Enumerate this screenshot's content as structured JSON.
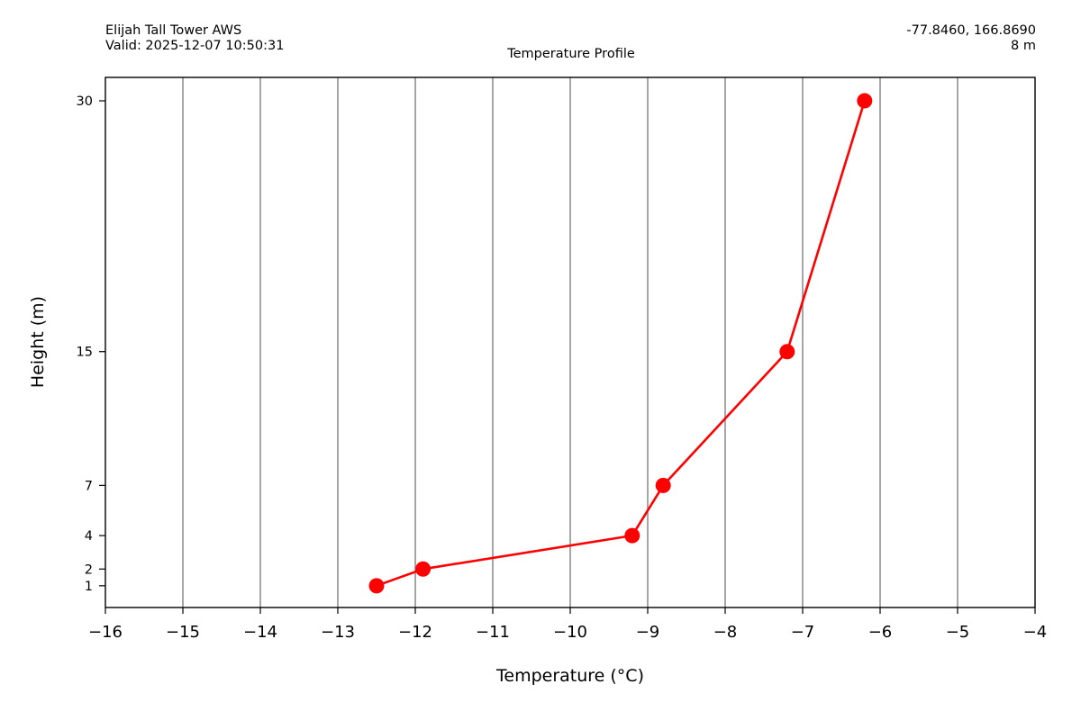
{
  "header": {
    "station": "Elijah Tall Tower AWS",
    "valid": "Valid: 2025-12-07 10:50:31",
    "coords": "-77.8460, 166.8690",
    "height": "8 m",
    "title": "Temperature Profile"
  },
  "chart_data": {
    "type": "line",
    "title": "Temperature Profile",
    "xlabel": "Temperature (°C)",
    "ylabel": "Height (m)",
    "xlim": [
      -16,
      -4
    ],
    "ylim": [
      -0.3,
      31.4
    ],
    "x_ticks": [
      -16,
      -15,
      -14,
      -13,
      -12,
      -11,
      -10,
      -9,
      -8,
      -7,
      -6,
      -5,
      -4
    ],
    "x_tick_labels": [
      "−16",
      "−15",
      "−14",
      "−13",
      "−12",
      "−11",
      "−10",
      "−9",
      "−8",
      "−7",
      "−6",
      "−5",
      "−4"
    ],
    "y_ticks": [
      1,
      2,
      4,
      7,
      15,
      30
    ],
    "y_tick_labels": [
      "1",
      "2",
      "4",
      "7",
      "15",
      "30"
    ],
    "grid": "vertical",
    "color": "#ff0000",
    "gridline_color": "#808080",
    "series": [
      {
        "points": [
          {
            "x": -12.5,
            "y": 1
          },
          {
            "x": -11.9,
            "y": 2
          },
          {
            "x": -9.2,
            "y": 4
          },
          {
            "x": -8.8,
            "y": 7
          },
          {
            "x": -7.2,
            "y": 15
          },
          {
            "x": -6.2,
            "y": 30
          }
        ]
      }
    ]
  }
}
